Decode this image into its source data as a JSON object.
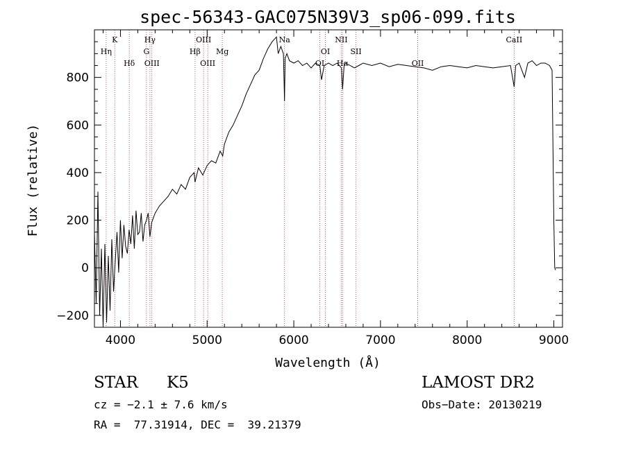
{
  "chart_data": {
    "type": "line",
    "title": "spec-56343-GAC075N39V3_sp06-099.fits",
    "xlabel": "Wavelength (Å)",
    "ylabel": "Flux (relative)",
    "xlim": [
      3700,
      9100
    ],
    "ylim": [
      -250,
      1000
    ],
    "xticks": [
      4000,
      5000,
      6000,
      7000,
      8000,
      9000
    ],
    "yticks": [
      -200,
      0,
      200,
      400,
      600,
      800
    ],
    "series": [
      {
        "name": "flux",
        "x": [
          3700,
          3720,
          3740,
          3760,
          3780,
          3800,
          3820,
          3840,
          3860,
          3880,
          3900,
          3920,
          3940,
          3960,
          3980,
          4000,
          4020,
          4040,
          4060,
          4080,
          4100,
          4120,
          4140,
          4160,
          4180,
          4200,
          4220,
          4240,
          4260,
          4280,
          4300,
          4320,
          4340,
          4360,
          4380,
          4400,
          4450,
          4500,
          4550,
          4600,
          4650,
          4700,
          4750,
          4800,
          4850,
          4860,
          4900,
          4950,
          5000,
          5050,
          5100,
          5150,
          5180,
          5200,
          5250,
          5300,
          5350,
          5400,
          5450,
          5500,
          5550,
          5600,
          5650,
          5700,
          5750,
          5800,
          5820,
          5850,
          5880,
          5893,
          5900,
          5920,
          5950,
          6000,
          6050,
          6100,
          6150,
          6200,
          6250,
          6300,
          6320,
          6350,
          6400,
          6450,
          6500,
          6550,
          6563,
          6580,
          6600,
          6650,
          6700,
          6750,
          6800,
          6900,
          7000,
          7100,
          7200,
          7300,
          7400,
          7500,
          7600,
          7700,
          7800,
          7900,
          8000,
          8100,
          8200,
          8300,
          8400,
          8500,
          8542,
          8560,
          8600,
          8662,
          8700,
          8750,
          8800,
          8850,
          8900,
          8950,
          8980,
          9000,
          9010,
          9020
        ],
        "y": [
          150,
          -150,
          320,
          -200,
          80,
          -250,
          100,
          -230,
          50,
          -180,
          120,
          -100,
          30,
          150,
          -20,
          200,
          40,
          180,
          90,
          60,
          160,
          100,
          220,
          80,
          240,
          140,
          150,
          230,
          110,
          180,
          200,
          230,
          130,
          190,
          210,
          230,
          260,
          280,
          300,
          330,
          310,
          350,
          330,
          380,
          400,
          360,
          420,
          390,
          430,
          450,
          440,
          490,
          470,
          520,
          570,
          600,
          640,
          680,
          730,
          770,
          810,
          830,
          880,
          920,
          950,
          970,
          900,
          930,
          900,
          700,
          880,
          900,
          870,
          860,
          870,
          850,
          860,
          840,
          860,
          850,
          790,
          850,
          860,
          850,
          860,
          840,
          750,
          850,
          860,
          850,
          840,
          850,
          860,
          850,
          860,
          845,
          855,
          850,
          845,
          840,
          830,
          845,
          850,
          845,
          840,
          850,
          845,
          840,
          845,
          850,
          760,
          850,
          860,
          800,
          860,
          870,
          850,
          860,
          860,
          850,
          830,
          200,
          0,
          -10
        ]
      }
    ],
    "lines": [
      {
        "wave": 3835,
        "label": "Hη",
        "row": 2
      },
      {
        "wave": 3934,
        "label": "K",
        "row": 1
      },
      {
        "wave": 4102,
        "label": "Hδ",
        "row": 3
      },
      {
        "wave": 4300,
        "label": "G",
        "row": 2
      },
      {
        "wave": 4340,
        "label": "Hγ",
        "row": 1
      },
      {
        "wave": 4363,
        "label": "OIII",
        "row": 3
      },
      {
        "wave": 4861,
        "label": "Hβ",
        "row": 2
      },
      {
        "wave": 4959,
        "label": "OIII",
        "row": 1
      },
      {
        "wave": 5007,
        "label": "OIII",
        "row": 3
      },
      {
        "wave": 5175,
        "label": "Mg",
        "row": 2
      },
      {
        "wave": 5893,
        "label": "Na",
        "row": 1
      },
      {
        "wave": 6300,
        "label": "OI",
        "row": 3
      },
      {
        "wave": 6364,
        "label": "OI",
        "row": 2
      },
      {
        "wave": 6548,
        "label": "NII",
        "row": 1
      },
      {
        "wave": 6563,
        "label": "Hα",
        "row": 3
      },
      {
        "wave": 6717,
        "label": "SII",
        "row": 2
      },
      {
        "wave": 7430,
        "label": "OII",
        "row": 3
      },
      {
        "wave": 8542,
        "label": "CaII",
        "row": 1
      }
    ]
  },
  "info": {
    "object_class": "STAR",
    "subclass": "K5",
    "survey": "LAMOST DR2",
    "cz": "cz = −2.1 ± 7.6 km/s",
    "obs_date": "Obs−Date: 20130219",
    "coords": "RA =  77.31914, DEC =  39.21379"
  }
}
